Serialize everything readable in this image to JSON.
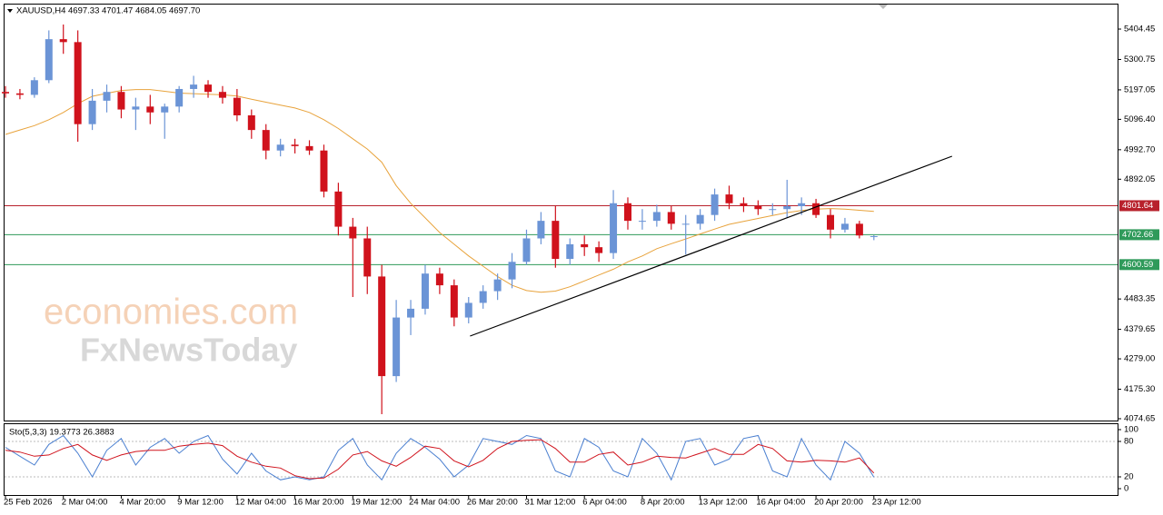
{
  "chart_data": {
    "type": "candlestick",
    "title": "XAUUSD,H4  4697.33 4701.47 4684.05 4697.70",
    "watermark": [
      "economies.com",
      "FxNewsToday"
    ],
    "categories": [
      "25 Feb 2026",
      null,
      null,
      null,
      "2 Mar 04:00",
      null,
      null,
      null,
      "4 Mar 20:00",
      null,
      null,
      null,
      "9 Mar 12:00",
      null,
      null,
      null,
      "12 Mar 04:00",
      null,
      null,
      null,
      "16 Mar 20:00",
      null,
      null,
      null,
      "19 Mar 12:00",
      null,
      null,
      null,
      "24 Mar 04:00",
      null,
      null,
      null,
      "26 Mar 20:00",
      null,
      null,
      null,
      "31 Mar 12:00",
      null,
      null,
      null,
      "6 Apr 04:00",
      null,
      null,
      null,
      "8 Apr 20:00",
      null,
      null,
      null,
      "13 Apr 12:00",
      null,
      null,
      null,
      "16 Apr 04:00",
      null,
      null,
      null,
      "20 Apr 20:00",
      null,
      null,
      null,
      "23 Apr 12:00"
    ],
    "open": [
      5190,
      5185,
      5180,
      5230,
      5370,
      5360,
      5080,
      5160,
      5190,
      5130,
      5140,
      5120,
      5140,
      5200,
      5215,
      5190,
      5170,
      5110,
      5060,
      4990,
      5010,
      5005,
      4990,
      4850,
      4730,
      4690,
      4560,
      4220,
      4420,
      4450,
      4570,
      4530,
      4420,
      4470,
      4510,
      4550,
      4610,
      4690,
      4750,
      4620,
      4670,
      4660,
      4640,
      4810,
      4750,
      4750,
      4780,
      4740,
      4740,
      4770,
      4840,
      4810,
      4800,
      4790,
      4790,
      4800,
      4810,
      4770,
      4720,
      4740,
      4697.33
    ],
    "high": [
      5210,
      5200,
      5240,
      5400,
      5420,
      5400,
      5200,
      5215,
      5210,
      5170,
      5180,
      5150,
      5210,
      5245,
      5230,
      5210,
      5200,
      5130,
      5080,
      5030,
      5030,
      5025,
      5010,
      4880,
      4760,
      4730,
      4600,
      4480,
      4480,
      4600,
      4590,
      4550,
      4490,
      4530,
      4570,
      4640,
      4720,
      4780,
      4800,
      4690,
      4700,
      4680,
      4855,
      4830,
      4790,
      4805,
      4800,
      4770,
      4790,
      4860,
      4870,
      4830,
      4820,
      4810,
      4890,
      4830,
      4825,
      4790,
      4760,
      4750,
      4701.47
    ],
    "low": [
      5170,
      5165,
      5170,
      5220,
      5320,
      5020,
      5060,
      5120,
      5100,
      5060,
      5080,
      5030,
      5120,
      5170,
      5170,
      5150,
      5090,
      5030,
      4960,
      4970,
      4980,
      4975,
      4830,
      4700,
      4490,
      4500,
      4090,
      4200,
      4360,
      4430,
      4500,
      4390,
      4400,
      4450,
      4480,
      4520,
      4600,
      4670,
      4590,
      4600,
      4630,
      4610,
      4620,
      4720,
      4720,
      4730,
      4720,
      4635,
      4720,
      4750,
      4790,
      4780,
      4770,
      4770,
      4760,
      4770,
      4760,
      4690,
      4710,
      4690,
      4684.05
    ],
    "close": [
      5185,
      5180,
      5230,
      5370,
      5360,
      5080,
      5160,
      5190,
      5130,
      5140,
      5120,
      5140,
      5200,
      5215,
      5190,
      5170,
      5110,
      5060,
      4990,
      5010,
      5005,
      4990,
      4850,
      4730,
      4690,
      4560,
      4220,
      4420,
      4450,
      4570,
      4530,
      4420,
      4470,
      4510,
      4550,
      4610,
      4690,
      4750,
      4620,
      4670,
      4660,
      4640,
      4810,
      4750,
      4750,
      4780,
      4740,
      4740,
      4770,
      4840,
      4810,
      4800,
      4790,
      4790,
      4800,
      4810,
      4770,
      4720,
      4740,
      4700,
      4697.7
    ],
    "bull_color": "#6b94d6",
    "bear_color": "#d0121c",
    "ma": {
      "color": "#e8a33c",
      "values": [
        5045,
        5060,
        5075,
        5095,
        5120,
        5150,
        5175,
        5185,
        5195,
        5198,
        5198,
        5192,
        5186,
        5184,
        5182,
        5180,
        5176,
        5165,
        5155,
        5145,
        5135,
        5120,
        5095,
        5065,
        5030,
        4995,
        4950,
        4870,
        4810,
        4760,
        4710,
        4670,
        4630,
        4595,
        4560,
        4530,
        4512,
        4506,
        4510,
        4525,
        4545,
        4565,
        4585,
        4610,
        4630,
        4655,
        4672,
        4688,
        4705,
        4722,
        4738,
        4748,
        4758,
        4768,
        4778,
        4785,
        4790,
        4792,
        4790,
        4786,
        4782
      ]
    },
    "trendline": {
      "color": "#000000",
      "x": [
        32.1,
        65.4
      ],
      "y": [
        4356.7,
        4970.5
      ]
    },
    "levels": [
      {
        "value": 4801.64,
        "color": "#b8212c"
      },
      {
        "value": 4702.66,
        "color": "#2f9a5a"
      },
      {
        "value": 4600.59,
        "color": "#2f9a5a"
      }
    ],
    "ylim": [
      4068.4,
      5488.2
    ],
    "yticks": [
      5404.45,
      5300.75,
      5197.05,
      {
        "value": 5096.4,
        "label": "5096.40"
      },
      {
        "value": 4992.7,
        "label": "4992.70"
      },
      4892.05,
      4483.35,
      4379.65,
      {
        "value": 4279,
        "label": "4279.00"
      },
      {
        "value": 4175.3,
        "label": "4175.30"
      },
      4074.65
    ],
    "indicator": {
      "label": "Sto(5,3,3) 19.3773 26.3883",
      "ylim": [
        0,
        100
      ],
      "yticks": [
        0,
        20,
        80,
        100
      ],
      "levels": [
        20,
        80
      ],
      "k": {
        "color": "#4a7fd0",
        "values": [
          70,
          55,
          40,
          75,
          90,
          60,
          20,
          65,
          85,
          40,
          70,
          85,
          60,
          80,
          90,
          50,
          25,
          60,
          30,
          15,
          20,
          15,
          20,
          65,
          85,
          40,
          15,
          60,
          85,
          70,
          50,
          20,
          40,
          85,
          80,
          75,
          90,
          85,
          30,
          20,
          85,
          70,
          30,
          20,
          85,
          60,
          15,
          80,
          85,
          40,
          50,
          85,
          90,
          30,
          20,
          85,
          40,
          15,
          80,
          60,
          19.3773
        ]
      },
      "d": {
        "color": "#d0121c",
        "values": [
          65,
          62,
          55,
          57,
          68,
          75,
          57,
          48,
          57,
          63,
          65,
          65,
          72,
          75,
          77,
          73,
          55,
          45,
          38,
          35,
          22,
          17,
          18,
          33,
          57,
          63,
          47,
          38,
          53,
          72,
          68,
          47,
          37,
          48,
          68,
          80,
          82,
          83,
          68,
          45,
          45,
          58,
          62,
          40,
          45,
          55,
          53,
          52,
          60,
          68,
          58,
          58,
          75,
          68,
          47,
          45,
          48,
          47,
          45,
          52,
          26.3883
        ]
      }
    }
  }
}
